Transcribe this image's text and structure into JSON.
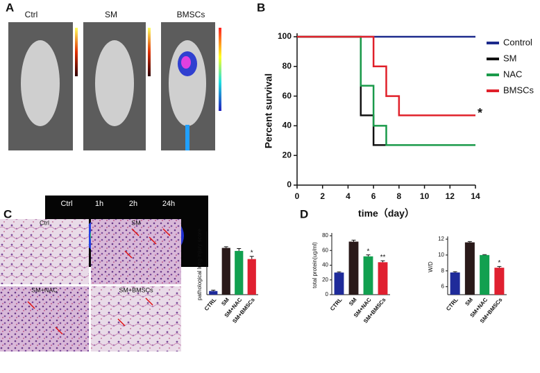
{
  "panel_labels": [
    "A",
    "B",
    "C",
    "D"
  ],
  "mouse_labels": [
    "Ctrl",
    "SM",
    "BMSCs"
  ],
  "lung_labels": [
    "Ctrl",
    "1h",
    "2h",
    "24h"
  ],
  "micrograph_labels": [
    "Ctrl",
    "SM",
    "SM+NAC",
    "SM+BMSCs"
  ],
  "chart_data": [
    {
      "type": "line",
      "step": "post",
      "x": [
        0,
        5,
        6,
        7,
        8,
        14
      ],
      "xlim": [
        0,
        14
      ],
      "xticks": [
        0,
        2,
        4,
        6,
        8,
        10,
        12,
        14
      ],
      "ylim": [
        0,
        100
      ],
      "yticks": [
        0,
        20,
        40,
        60,
        80,
        100
      ],
      "xlabel": "time（day）",
      "ylabel": "Percent survival",
      "legend": "right",
      "series": [
        {
          "name": "Control",
          "color": "#1c2a8c",
          "values": [
            100,
            100,
            100,
            100,
            100,
            100
          ]
        },
        {
          "name": "SM",
          "color": "#111111",
          "values": [
            100,
            47,
            27,
            27,
            27,
            27
          ]
        },
        {
          "name": "NAC",
          "color": "#1a9a4a",
          "values": [
            100,
            67,
            40,
            27,
            27,
            27
          ]
        },
        {
          "name": "BMSCs",
          "color": "#e0202a",
          "values": [
            100,
            100,
            80,
            60,
            47,
            47
          ]
        }
      ],
      "annotations": [
        {
          "series": "BMSCs",
          "text": "*"
        }
      ]
    },
    {
      "type": "bar",
      "ylabel": "pathological lung injury score",
      "categories": [
        "CTRL",
        "SM",
        "SM+NAC",
        "SM+BMSCs"
      ],
      "values": [
        1.2,
        15.5,
        14.5,
        11.8
      ],
      "errors": [
        0.3,
        0.4,
        0.8,
        0.9
      ],
      "colors": [
        "#1f2b9a",
        "#2a1a1a",
        "#12a050",
        "#e02030"
      ],
      "ylim": [
        0,
        20
      ],
      "annotations": [
        {
          "category": "SM+BMSCs",
          "text": "*"
        }
      ]
    },
    {
      "type": "bar",
      "ylabel": "total protein(ug/ml)",
      "categories": [
        "CTRL",
        "SM",
        "SM+NAC",
        "SM+BMSCs"
      ],
      "values": [
        30,
        72,
        52,
        44
      ],
      "errors": [
        1,
        2,
        2,
        2
      ],
      "colors": [
        "#1f2b9a",
        "#2a1a1a",
        "#12a050",
        "#e02030"
      ],
      "ylim": [
        0,
        80
      ],
      "yticks": [
        0,
        20,
        40,
        60,
        80
      ],
      "annotations": [
        {
          "category": "SM+NAC",
          "text": "*"
        },
        {
          "category": "SM+BMSCs",
          "text": "**"
        }
      ]
    },
    {
      "type": "bar",
      "ylabel": "W/D",
      "categories": [
        "CTRL",
        "SM",
        "SM+NAC",
        "SM+BMSCs"
      ],
      "values": [
        7.8,
        11.6,
        10.0,
        8.4
      ],
      "errors": [
        0.1,
        0.1,
        0.05,
        0.15
      ],
      "colors": [
        "#1f2b9a",
        "#2a1a1a",
        "#12a050",
        "#e02030"
      ],
      "ylim": [
        5,
        12
      ],
      "yticks": [
        6,
        8,
        10,
        12
      ],
      "annotations": [
        {
          "category": "SM+BMSCs",
          "text": "*"
        }
      ]
    }
  ]
}
